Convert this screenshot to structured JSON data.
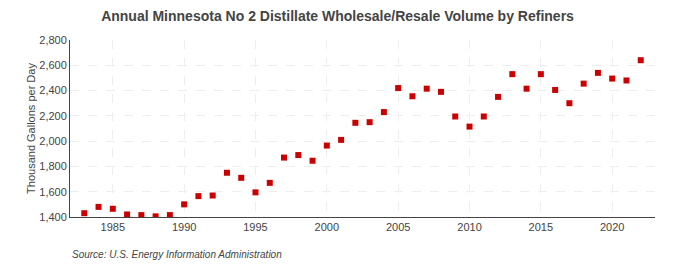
{
  "chart_data": {
    "type": "scatter",
    "title": "Annual Minnesota No 2 Distillate Wholesale/Resale Volume by Refiners",
    "ylabel": "Thousand Gallons per Day",
    "annotations": [
      "Source: U.S. Energy Information Administration"
    ],
    "x": [
      1983,
      1984,
      1985,
      1986,
      1987,
      1988,
      1989,
      1990,
      1991,
      1992,
      1993,
      1994,
      1995,
      1996,
      1997,
      1998,
      1999,
      2000,
      2001,
      2002,
      2003,
      2004,
      2005,
      2006,
      2007,
      2008,
      2009,
      2010,
      2011,
      2012,
      2013,
      2014,
      2015,
      2016,
      2017,
      2018,
      2019,
      2020,
      2021,
      2022
    ],
    "values": [
      1430,
      1480,
      1465,
      1420,
      1415,
      1405,
      1415,
      1500,
      1565,
      1570,
      1750,
      1710,
      1595,
      1670,
      1870,
      1890,
      1845,
      1965,
      2010,
      2145,
      2150,
      2230,
      2420,
      2355,
      2415,
      2390,
      2195,
      2115,
      2195,
      2350,
      2530,
      2415,
      2530,
      2405,
      2300,
      2455,
      2540,
      2495,
      2480,
      2640
    ],
    "color": "#cc0000",
    "marker": "square",
    "xlim": [
      1982,
      2023
    ],
    "xticks": [
      1985,
      1990,
      1995,
      2000,
      2005,
      2010,
      2015,
      2020
    ],
    "ylim": [
      1400,
      2800
    ],
    "yticks": [
      {
        "value": 1400,
        "label": "1,400"
      },
      {
        "value": 1600,
        "label": "1,600"
      },
      {
        "value": 1800,
        "label": "1,800"
      },
      {
        "value": 2000,
        "label": "2,000"
      },
      {
        "value": 2200,
        "label": "2,200"
      },
      {
        "value": 2400,
        "label": "2,400"
      },
      {
        "value": 2600,
        "label": "2,600"
      },
      {
        "value": 2800,
        "label": "2,800"
      }
    ],
    "grid": true
  }
}
